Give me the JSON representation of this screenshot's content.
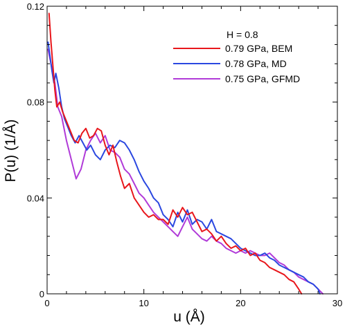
{
  "chart_data": {
    "type": "line",
    "xlabel": "u (Å)",
    "ylabel": "P(u) (1/Å)",
    "xlim": [
      0,
      30
    ],
    "ylim": [
      0,
      0.12
    ],
    "xticks": [
      0,
      10,
      20,
      30
    ],
    "xtick_labels": [
      "0",
      "10",
      "20",
      "30"
    ],
    "yticks": [
      0,
      0.04,
      0.08,
      0.12
    ],
    "ytick_labels": [
      "0",
      "0.04",
      "0.08",
      "0.12"
    ],
    "grid": false,
    "legend_position": "top-right",
    "legend_title": "H = 0.8",
    "series": [
      {
        "name": "0.79 GPa, BEM",
        "color": "#e8161b",
        "x": [
          0.2,
          0.4,
          0.6,
          0.8,
          1.0,
          1.3,
          1.6,
          2.0,
          2.4,
          2.8,
          3.2,
          3.6,
          4.0,
          4.4,
          4.8,
          5.2,
          5.6,
          6.0,
          6.4,
          6.8,
          7.2,
          7.6,
          8.0,
          8.5,
          9.0,
          9.5,
          10.0,
          10.5,
          11.0,
          11.5,
          12.0,
          12.5,
          13.0,
          13.5,
          14.0,
          14.5,
          15.0,
          15.5,
          16.0,
          16.5,
          17.0,
          17.5,
          18.0,
          18.5,
          19.0,
          19.5,
          20.0,
          20.5,
          21.0,
          21.5,
          22.0,
          22.5,
          23.0,
          23.5,
          24.0,
          24.5,
          25.0,
          25.5,
          26.0,
          26.3
        ],
        "y": [
          0.117,
          0.105,
          0.095,
          0.085,
          0.078,
          0.08,
          0.076,
          0.072,
          0.068,
          0.064,
          0.063,
          0.067,
          0.069,
          0.065,
          0.066,
          0.069,
          0.068,
          0.062,
          0.058,
          0.062,
          0.055,
          0.049,
          0.044,
          0.046,
          0.04,
          0.037,
          0.034,
          0.032,
          0.033,
          0.031,
          0.031,
          0.029,
          0.035,
          0.032,
          0.036,
          0.033,
          0.034,
          0.03,
          0.026,
          0.027,
          0.025,
          0.022,
          0.024,
          0.021,
          0.019,
          0.02,
          0.018,
          0.019,
          0.016,
          0.017,
          0.014,
          0.013,
          0.011,
          0.01,
          0.009,
          0.008,
          0.006,
          0.005,
          0.002,
          0.0
        ]
      },
      {
        "name": "0.78 GPa, MD",
        "color": "#2a47e0",
        "x": [
          0.1,
          0.3,
          0.5,
          0.7,
          0.9,
          1.2,
          1.5,
          1.8,
          2.1,
          2.5,
          2.9,
          3.3,
          3.7,
          4.1,
          4.5,
          5.0,
          5.5,
          6.0,
          6.5,
          7.0,
          7.5,
          8.0,
          8.5,
          9.0,
          9.5,
          10.0,
          10.5,
          11.0,
          11.5,
          12.0,
          12.5,
          13.0,
          13.5,
          14.0,
          14.5,
          15.0,
          15.5,
          16.0,
          16.5,
          17.0,
          17.5,
          18.0,
          18.5,
          19.0,
          19.5,
          20.0,
          20.5,
          21.0,
          21.5,
          22.0,
          22.5,
          23.0,
          23.5,
          24.0,
          24.5,
          25.0,
          25.5,
          26.0,
          26.5,
          27.0,
          27.5,
          28.0,
          28.2
        ],
        "y": [
          0.105,
          0.099,
          0.093,
          0.088,
          0.092,
          0.086,
          0.078,
          0.073,
          0.07,
          0.066,
          0.063,
          0.066,
          0.063,
          0.06,
          0.062,
          0.058,
          0.056,
          0.06,
          0.062,
          0.061,
          0.064,
          0.063,
          0.06,
          0.056,
          0.051,
          0.047,
          0.044,
          0.04,
          0.038,
          0.033,
          0.031,
          0.028,
          0.034,
          0.03,
          0.035,
          0.029,
          0.031,
          0.03,
          0.027,
          0.031,
          0.026,
          0.025,
          0.024,
          0.023,
          0.021,
          0.019,
          0.018,
          0.017,
          0.016,
          0.016,
          0.017,
          0.015,
          0.014,
          0.012,
          0.011,
          0.01,
          0.009,
          0.008,
          0.007,
          0.005,
          0.004,
          0.002,
          0.0
        ]
      },
      {
        "name": "0.75 GPa, GFMD",
        "color": "#b03ad8",
        "x": [
          0.1,
          0.3,
          0.5,
          0.8,
          1.1,
          1.5,
          2.0,
          2.5,
          3.0,
          3.5,
          4.0,
          4.5,
          5.0,
          5.5,
          6.0,
          6.5,
          7.0,
          7.5,
          8.0,
          8.5,
          9.0,
          9.5,
          10.0,
          10.5,
          11.0,
          11.5,
          12.0,
          12.5,
          13.0,
          13.5,
          14.0,
          14.5,
          15.0,
          15.5,
          16.0,
          16.5,
          17.0,
          17.5,
          18.0,
          18.5,
          19.0,
          19.5,
          20.0,
          20.5,
          21.0,
          21.5,
          22.0,
          22.5,
          23.0,
          23.5,
          24.0,
          24.5,
          25.0,
          25.5,
          26.0,
          26.5,
          27.0,
          27.5,
          28.0,
          28.5
        ],
        "y": [
          0.102,
          0.098,
          0.094,
          0.088,
          0.078,
          0.074,
          0.064,
          0.056,
          0.048,
          0.052,
          0.06,
          0.064,
          0.067,
          0.063,
          0.066,
          0.06,
          0.059,
          0.057,
          0.052,
          0.05,
          0.046,
          0.042,
          0.04,
          0.037,
          0.034,
          0.032,
          0.03,
          0.028,
          0.026,
          0.024,
          0.028,
          0.032,
          0.027,
          0.025,
          0.023,
          0.022,
          0.024,
          0.022,
          0.021,
          0.019,
          0.018,
          0.017,
          0.018,
          0.017,
          0.018,
          0.017,
          0.016,
          0.016,
          0.017,
          0.015,
          0.013,
          0.012,
          0.01,
          0.009,
          0.007,
          0.006,
          0.005,
          0.004,
          0.002,
          0.0
        ]
      }
    ]
  }
}
